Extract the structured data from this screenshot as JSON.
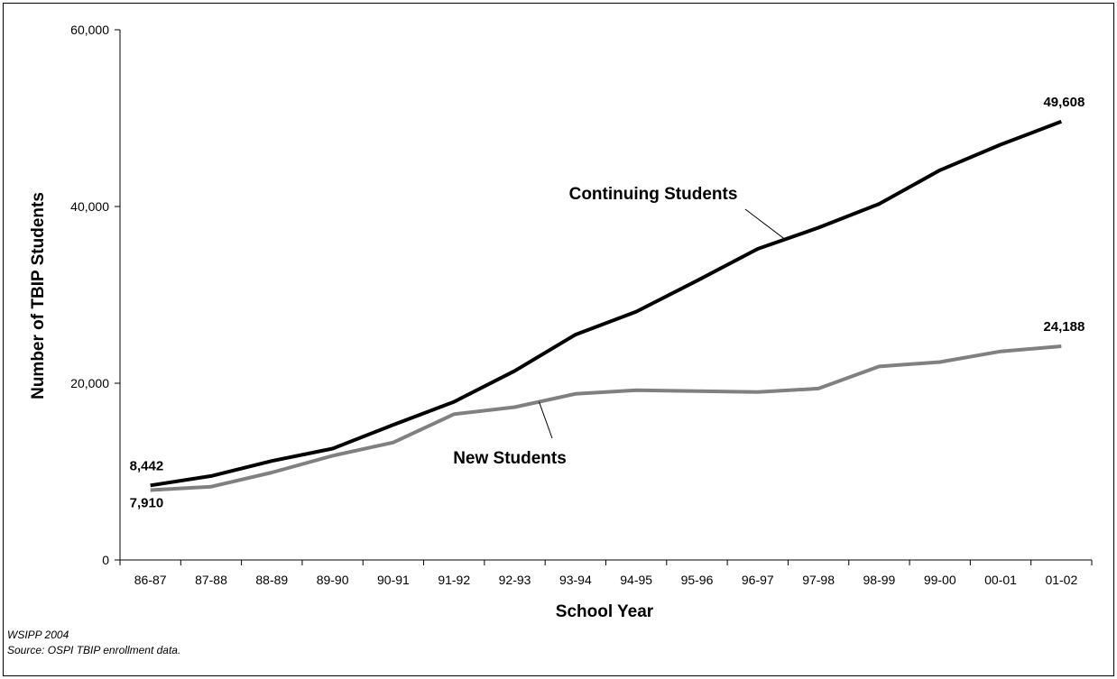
{
  "chart_data": {
    "type": "line",
    "title": "",
    "xlabel": "School Year",
    "ylabel": "Number of TBIP Students",
    "categories": [
      "86-87",
      "87-88",
      "88-89",
      "89-90",
      "90-91",
      "91-92",
      "92-93",
      "93-94",
      "94-95",
      "95-96",
      "96-97",
      "97-98",
      "98-99",
      "99-00",
      "00-01",
      "01-02"
    ],
    "ylim": [
      0,
      60000
    ],
    "yticks": [
      0,
      20000,
      40000,
      60000
    ],
    "ytick_labels": [
      "0",
      "20,000",
      "40,000",
      "60,000"
    ],
    "grid": false,
    "series": [
      {
        "name": "Continuing Students",
        "color": "#000000",
        "values": [
          8442,
          9500,
          11200,
          12600,
          15300,
          17900,
          21400,
          25500,
          28100,
          31600,
          35200,
          37600,
          40300,
          44100,
          47000,
          49608
        ]
      },
      {
        "name": "New Students",
        "color": "#808080",
        "values": [
          7910,
          8300,
          9900,
          11800,
          13300,
          16500,
          17300,
          18800,
          19200,
          19100,
          19000,
          19400,
          21900,
          22400,
          23600,
          24188
        ]
      }
    ],
    "data_labels": [
      {
        "series": 0,
        "index": 0,
        "text": "8,442"
      },
      {
        "series": 1,
        "index": 0,
        "text": "7,910"
      },
      {
        "series": 0,
        "index": 15,
        "text": "49,608"
      },
      {
        "series": 1,
        "index": 15,
        "text": "24,188"
      }
    ]
  },
  "notes": {
    "credit": "WSIPP 2004",
    "source": "Source:  OSPI TBIP enrollment data."
  }
}
